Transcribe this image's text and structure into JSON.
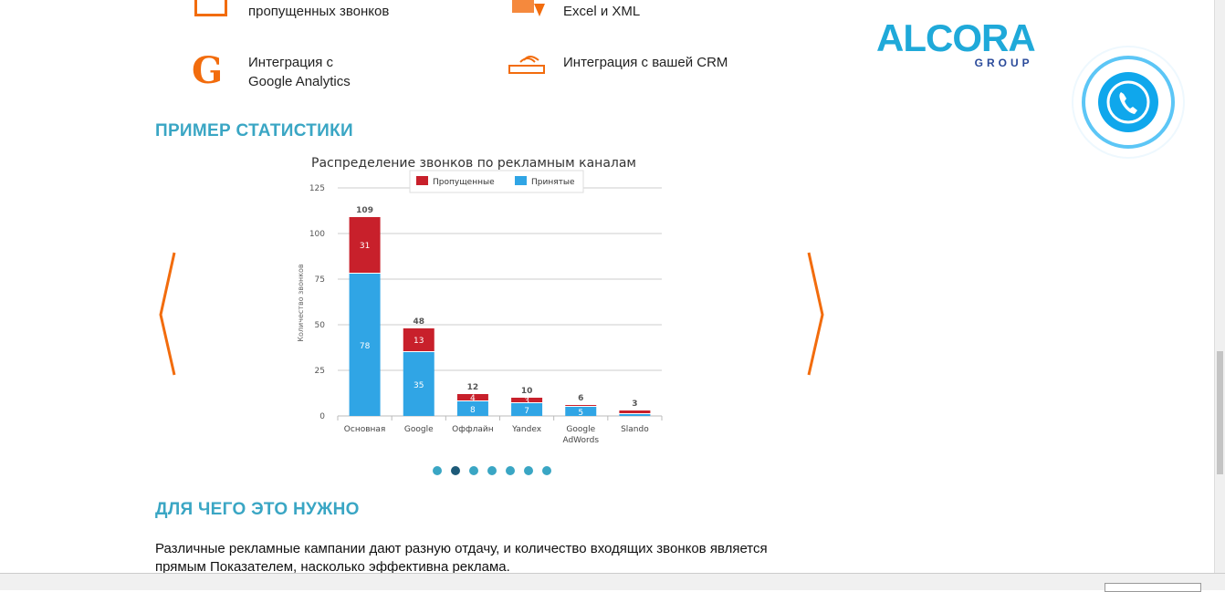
{
  "features": [
    {
      "icon": "envelope-icon",
      "text": "пропущенных звонков"
    },
    {
      "icon": "table-export-icon",
      "text": "Excel и XML"
    },
    {
      "icon": "google-icon",
      "text_line1": "Интеграция с",
      "text_line2": "Google Analytics"
    },
    {
      "icon": "crm-icon",
      "text": "Интеграция с вашей CRM"
    }
  ],
  "logo": {
    "main": "ALCORA",
    "sub": "GROUP"
  },
  "sections": {
    "stats_title": "ПРИМЕР СТАТИСТИКИ",
    "why_title": "ДЛЯ ЧЕГО ЭТО НУЖНО"
  },
  "paragraph": {
    "line1": "Различные рекламные кампании дают разную отдачу, и количество входящих звонков является",
    "line2": "прямым Показателем, насколько эффективна реклама."
  },
  "carousel": {
    "dots": 7,
    "active": 1
  },
  "colors": {
    "accent": "#3aa6c4",
    "orange": "#f26c0d",
    "missed": "#c8202b",
    "accepted": "#30a5e5"
  },
  "chart_data": {
    "type": "bar",
    "stacked": true,
    "title": "Распределение звонков по рекламным каналам",
    "ylabel": "Количество звонков",
    "xlabel": "",
    "ylim": [
      0,
      125
    ],
    "yticks": [
      0,
      25,
      50,
      75,
      100,
      125
    ],
    "grid": true,
    "legend": "top",
    "categories": [
      "Основная",
      "Google",
      "Оффлайн",
      "Yandex",
      "Google AdWords",
      "Slando"
    ],
    "series": [
      {
        "name": "Пропущенные",
        "color": "#c8202b",
        "values": [
          31,
          13,
          4,
          3,
          1,
          2
        ]
      },
      {
        "name": "Принятые",
        "color": "#30a5e5",
        "values": [
          78,
          35,
          8,
          7,
          5,
          1
        ]
      }
    ],
    "totals": [
      109,
      48,
      12,
      10,
      6,
      3
    ]
  }
}
